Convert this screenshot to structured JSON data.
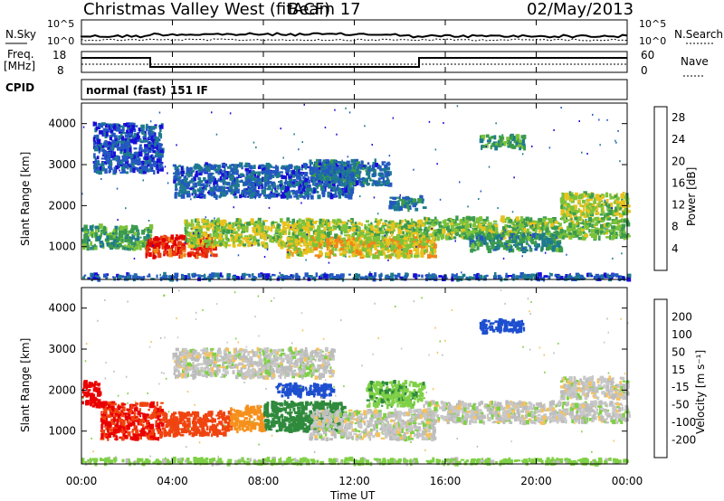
{
  "header": {
    "station": "Christmas Valley West (fitACF)",
    "beam": "Beam 17",
    "date": "02/May/2013"
  },
  "top_panels": {
    "nsky_label": "N.Sky",
    "nsky_ticks": [
      "10^5",
      "10^0"
    ],
    "nsearch_label": "N.Search",
    "freq_label_1": "Freq.",
    "freq_label_2": "[MHz]",
    "freq_ticks": [
      "18",
      "8"
    ],
    "nave_label": "Nave",
    "nave_ticks": [
      "60",
      "0"
    ],
    "cpid_label": "CPID",
    "cpid_value": "normal (fast) 151 IF"
  },
  "colors": {
    "power_scale": [
      "#1a0dd8",
      "#2457c2",
      "#1e7a8e",
      "#3a9b4e",
      "#7cc23a",
      "#e8c21e",
      "#f2841a",
      "#e83812",
      "#e00000"
    ],
    "velocity_scale": [
      "#ea0000",
      "#f04410",
      "#f6901c",
      "#f5c25e",
      "#c8c8c8",
      "#bdbdbd",
      "#7fd046",
      "#2f8a3c",
      "#1d4fcf",
      "#0a0ac8"
    ]
  },
  "chart_data": [
    {
      "type": "heatmap",
      "name": "power",
      "ylabel": "Slant Range [km]",
      "yticks": [
        "1000",
        "2000",
        "3000",
        "4000"
      ],
      "ylim": [
        200,
        4500
      ],
      "xlim": [
        0,
        24
      ],
      "colorbar": {
        "label": "Power [dB]",
        "ticks": [
          "4",
          "8",
          "12",
          "16",
          "20",
          "24",
          "28"
        ],
        "range": [
          0,
          30
        ]
      },
      "bands": [
        {
          "t0": 0.0,
          "t1": 3.0,
          "r0": 950,
          "r1": 1500,
          "v": 12
        },
        {
          "t0": 2.8,
          "t1": 5.8,
          "r0": 750,
          "r1": 1250,
          "v": 26
        },
        {
          "t0": 4.5,
          "t1": 15.0,
          "r0": 1000,
          "r1": 1650,
          "v": 16
        },
        {
          "t0": 9.0,
          "t1": 15.5,
          "r0": 750,
          "r1": 1200,
          "v": 18
        },
        {
          "t0": 15.0,
          "t1": 24.0,
          "r0": 1200,
          "r1": 1700,
          "v": 14
        },
        {
          "t0": 17.0,
          "t1": 21.0,
          "r0": 900,
          "r1": 1300,
          "v": 10
        },
        {
          "t0": 21.0,
          "t1": 24.0,
          "r0": 1750,
          "r1": 2300,
          "v": 16
        },
        {
          "t0": 4.0,
          "t1": 12.0,
          "r0": 2200,
          "r1": 3000,
          "v": 6
        },
        {
          "t0": 10.0,
          "t1": 13.5,
          "r0": 2500,
          "r1": 3100,
          "v": 7
        },
        {
          "t0": 0.5,
          "t1": 3.5,
          "r0": 2800,
          "r1": 4000,
          "v": 5
        },
        {
          "t0": 17.5,
          "t1": 19.5,
          "r0": 3400,
          "r1": 3700,
          "v": 12
        },
        {
          "t0": 13.5,
          "t1": 15.0,
          "r0": 1900,
          "r1": 2200,
          "v": 8
        },
        {
          "t0": 0.0,
          "t1": 24.0,
          "r0": 200,
          "r1": 320,
          "v": 6
        }
      ]
    },
    {
      "type": "heatmap",
      "name": "velocity",
      "ylabel": "Slant Range [km]",
      "yticks": [
        "1000",
        "2000",
        "3000",
        "4000"
      ],
      "ylim": [
        200,
        4500
      ],
      "xlim": [
        0,
        24
      ],
      "colorbar": {
        "label": "Velocity [m s⁻¹]",
        "ticks": [
          "200",
          "100",
          "50",
          "15",
          "-15",
          "-50",
          "-100",
          "-200"
        ]
      },
      "bands": [
        {
          "t0": 0.0,
          "t1": 0.8,
          "r0": 1600,
          "r1": 2200,
          "v": -220
        },
        {
          "t0": 0.8,
          "t1": 3.5,
          "r0": 800,
          "r1": 1700,
          "v": -200
        },
        {
          "t0": 3.5,
          "t1": 6.5,
          "r0": 900,
          "r1": 1450,
          "v": -150
        },
        {
          "t0": 6.5,
          "t1": 8.0,
          "r0": 1000,
          "r1": 1600,
          "v": -80
        },
        {
          "t0": 8.0,
          "t1": 11.5,
          "r0": 1000,
          "r1": 1700,
          "v": 70
        },
        {
          "t0": 8.5,
          "t1": 11.0,
          "r0": 1850,
          "r1": 2150,
          "v": 180
        },
        {
          "t0": 10.0,
          "t1": 15.5,
          "r0": 800,
          "r1": 1500,
          "v": 0
        },
        {
          "t0": 12.5,
          "t1": 15.0,
          "r0": 1600,
          "r1": 2200,
          "v": 40
        },
        {
          "t0": 15.0,
          "t1": 24.0,
          "r0": 1200,
          "r1": 1700,
          "v": 0
        },
        {
          "t0": 21.0,
          "t1": 24.0,
          "r0": 1800,
          "r1": 2300,
          "v": 0
        },
        {
          "t0": 0.0,
          "t1": 24.0,
          "r0": 200,
          "r1": 320,
          "v": 30
        },
        {
          "t0": 17.5,
          "t1": 19.5,
          "r0": 3400,
          "r1": 3700,
          "v": 150
        },
        {
          "t0": 4.0,
          "t1": 11.0,
          "r0": 2300,
          "r1": 3000,
          "v": 0
        }
      ]
    }
  ],
  "xaxis": {
    "ticks": [
      "00:00",
      "04:00",
      "08:00",
      "12:00",
      "16:00",
      "20:00",
      "00:00"
    ],
    "label": "Time UT"
  }
}
